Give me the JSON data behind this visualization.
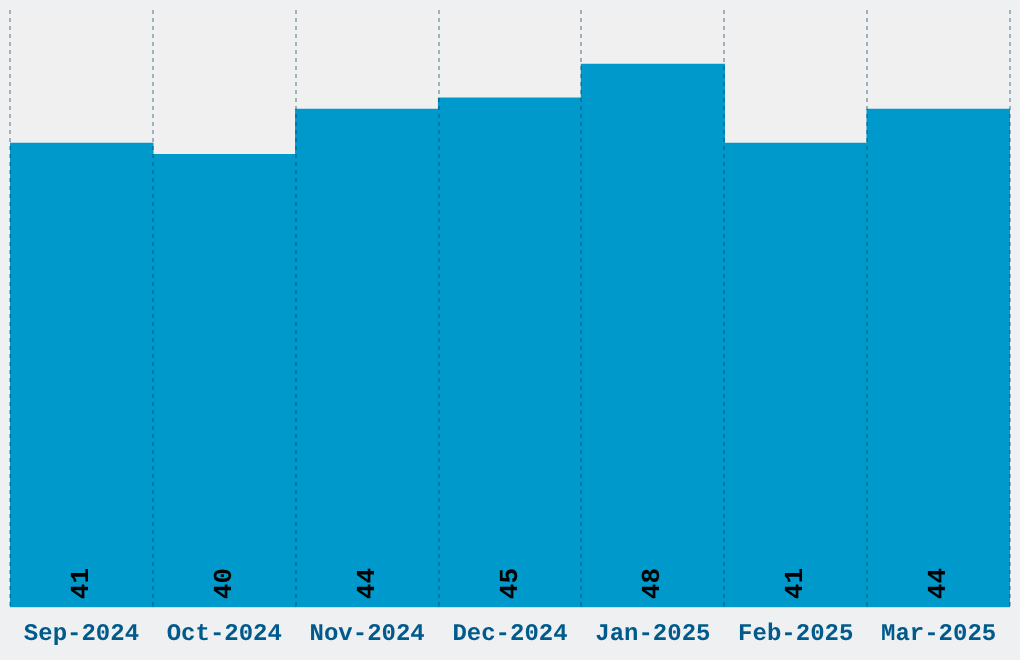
{
  "chart_data": {
    "type": "bar",
    "categories": [
      "Sep-2024",
      "Oct-2024",
      "Nov-2024",
      "Dec-2024",
      "Jan-2025",
      "Feb-2025",
      "Mar-2025"
    ],
    "values": [
      41,
      40,
      44,
      45,
      48,
      41,
      44
    ],
    "color": "#0099cc",
    "ylim": [
      0,
      52.8
    ],
    "tick_labels": "x",
    "grid": "x",
    "data_labels": true
  }
}
